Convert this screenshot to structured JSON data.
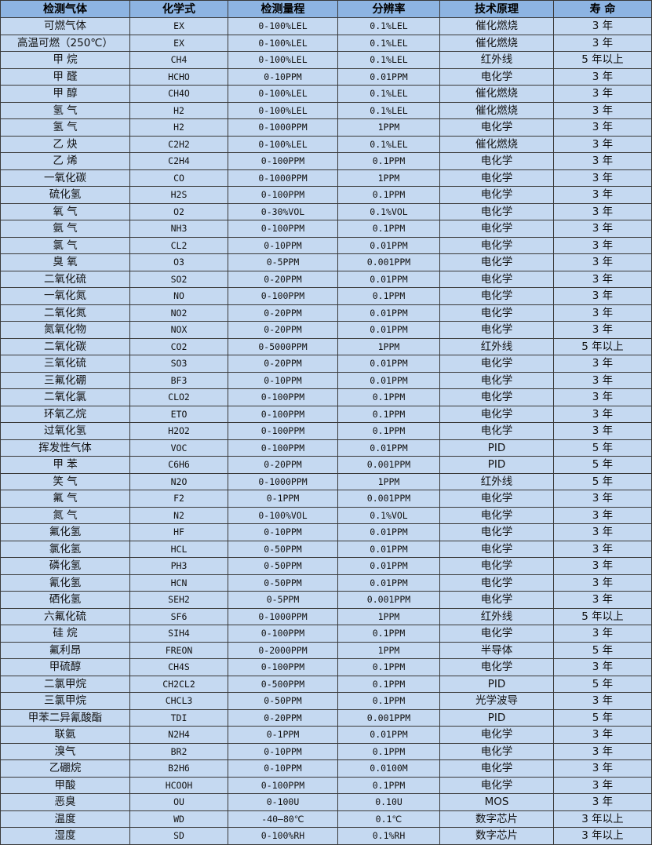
{
  "header": [
    "检测气体",
    "化学式",
    "检测量程",
    "分辨率",
    "技术原理",
    "寿 命"
  ],
  "rows": [
    [
      "可燃气体",
      "EX",
      "0-100%LEL",
      "0.1%LEL",
      "催化燃烧",
      "3 年"
    ],
    [
      "高温可燃（250℃）",
      "EX",
      "0-100%LEL",
      "0.1%LEL",
      "催化燃烧",
      "3 年"
    ],
    [
      "甲 烷",
      "CH4",
      "0-100%LEL",
      "0.1%LEL",
      "红外线",
      "5 年以上"
    ],
    [
      "甲 醛",
      "HCHO",
      "0-10PPM",
      "0.01PPM",
      "电化学",
      "3 年"
    ],
    [
      "甲 醇",
      "CH4O",
      "0-100%LEL",
      "0.1%LEL",
      "催化燃烧",
      "3 年"
    ],
    [
      "氢 气",
      "H2",
      "0-100%LEL",
      "0.1%LEL",
      "催化燃烧",
      "3 年"
    ],
    [
      "氢 气",
      "H2",
      "0-1000PPM",
      "1PPM",
      "电化学",
      "3 年"
    ],
    [
      "乙 炔",
      "C2H2",
      "0-100%LEL",
      "0.1%LEL",
      "催化燃烧",
      "3 年"
    ],
    [
      "乙 烯",
      "C2H4",
      "0-100PPM",
      "0.1PPM",
      "电化学",
      "3 年"
    ],
    [
      "一氧化碳",
      "CO",
      "0-1000PPM",
      "1PPM",
      "电化学",
      "3 年"
    ],
    [
      "硫化氢",
      "H2S",
      "0-100PPM",
      "0.1PPM",
      "电化学",
      "3 年"
    ],
    [
      "氧 气",
      "O2",
      "0-30%VOL",
      "0.1%VOL",
      "电化学",
      "3 年"
    ],
    [
      "氨 气",
      "NH3",
      "0-100PPM",
      "0.1PPM",
      "电化学",
      "3 年"
    ],
    [
      "氯 气",
      "CL2",
      "0-10PPM",
      "0.01PPM",
      "电化学",
      "3 年"
    ],
    [
      "臭 氧",
      "O3",
      "0-5PPM",
      "0.001PPM",
      "电化学",
      "3 年"
    ],
    [
      "二氧化硫",
      "SO2",
      "0-20PPM",
      "0.01PPM",
      "电化学",
      "3 年"
    ],
    [
      "一氧化氮",
      "NO",
      "0-100PPM",
      "0.1PPM",
      "电化学",
      "3 年"
    ],
    [
      "二氧化氮",
      "NO2",
      "0-20PPM",
      "0.01PPM",
      "电化学",
      "3 年"
    ],
    [
      "氮氧化物",
      "NOX",
      "0-20PPM",
      "0.01PPM",
      "电化学",
      "3 年"
    ],
    [
      "二氧化碳",
      "CO2",
      "0-5000PPM",
      "1PPM",
      "红外线",
      "5 年以上"
    ],
    [
      "三氧化硫",
      "SO3",
      "0-20PPM",
      "0.01PPM",
      "电化学",
      "3 年"
    ],
    [
      "三氟化硼",
      "BF3",
      "0-10PPM",
      "0.01PPM",
      "电化学",
      "3 年"
    ],
    [
      "二氧化氯",
      "CLO2",
      "0-100PPM",
      "0.1PPM",
      "电化学",
      "3 年"
    ],
    [
      "环氧乙烷",
      "ETO",
      "0-100PPM",
      "0.1PPM",
      "电化学",
      "3 年"
    ],
    [
      "过氧化氢",
      "H2O2",
      "0-100PPM",
      "0.1PPM",
      "电化学",
      "3 年"
    ],
    [
      "挥发性气体",
      "VOC",
      "0-100PPM",
      "0.01PPM",
      "PID",
      "5 年"
    ],
    [
      "甲 苯",
      "C6H6",
      "0-20PPM",
      "0.001PPM",
      "PID",
      "5 年"
    ],
    [
      "笑 气",
      "N2O",
      "0-1000PPM",
      "1PPM",
      "红外线",
      "5 年"
    ],
    [
      "氟 气",
      "F2",
      "0-1PPM",
      "0.001PPM",
      "电化学",
      "3 年"
    ],
    [
      "氮 气",
      "N2",
      "0-100%VOL",
      "0.1%VOL",
      "电化学",
      "3 年"
    ],
    [
      "氟化氢",
      "HF",
      "0-10PPM",
      "0.01PPM",
      "电化学",
      "3 年"
    ],
    [
      "氯化氢",
      "HCL",
      "0-50PPM",
      "0.01PPM",
      "电化学",
      "3 年"
    ],
    [
      "磷化氢",
      "PH3",
      "0-50PPM",
      "0.01PPM",
      "电化学",
      "3 年"
    ],
    [
      "氰化氢",
      "HCN",
      "0-50PPM",
      "0.01PPM",
      "电化学",
      "3 年"
    ],
    [
      "硒化氢",
      "SEH2",
      "0-5PPM",
      "0.001PPM",
      "电化学",
      "3 年"
    ],
    [
      "六氟化硫",
      "SF6",
      "0-1000PPM",
      "1PPM",
      "红外线",
      "5 年以上"
    ],
    [
      "硅 烷",
      "SIH4",
      "0-100PPM",
      "0.1PPM",
      "电化学",
      "3 年"
    ],
    [
      "氟利昂",
      "FREON",
      "0-2000PPM",
      "1PPM",
      "半导体",
      "5 年"
    ],
    [
      "甲硫醇",
      "CH4S",
      "0-100PPM",
      "0.1PPM",
      "电化学",
      "3 年"
    ],
    [
      "二氯甲烷",
      "CH2CL2",
      "0-500PPM",
      "0.1PPM",
      "PID",
      "5 年"
    ],
    [
      "三氯甲烷",
      "CHCL3",
      "0-50PPM",
      "0.1PPM",
      "光学波导",
      "3 年"
    ],
    [
      "甲苯二异氰酸酯",
      "TDI",
      "0-20PPM",
      "0.001PPM",
      "PID",
      "5 年"
    ],
    [
      "联氨",
      "N2H4",
      "0-1PPM",
      "0.01PPM",
      "电化学",
      "3 年"
    ],
    [
      "溴气",
      "BR2",
      "0-10PPM",
      "0.1PPM",
      "电化学",
      "3 年"
    ],
    [
      "乙硼烷",
      "B2H6",
      "0-10PPM",
      "0.0100M",
      "电化学",
      "3 年"
    ],
    [
      "甲酸",
      "HCOOH",
      "0-100PPM",
      "0.1PPM",
      "电化学",
      "3 年"
    ],
    [
      "恶臭",
      "OU",
      "0-100U",
      "0.10U",
      "MOS",
      "3 年"
    ],
    [
      "温度",
      "WD",
      "-40—80℃",
      "0.1℃",
      "数字芯片",
      "3 年以上"
    ],
    [
      "湿度",
      "SD",
      "0-100%RH",
      "0.1%RH",
      "数字芯片",
      "3 年以上"
    ]
  ]
}
